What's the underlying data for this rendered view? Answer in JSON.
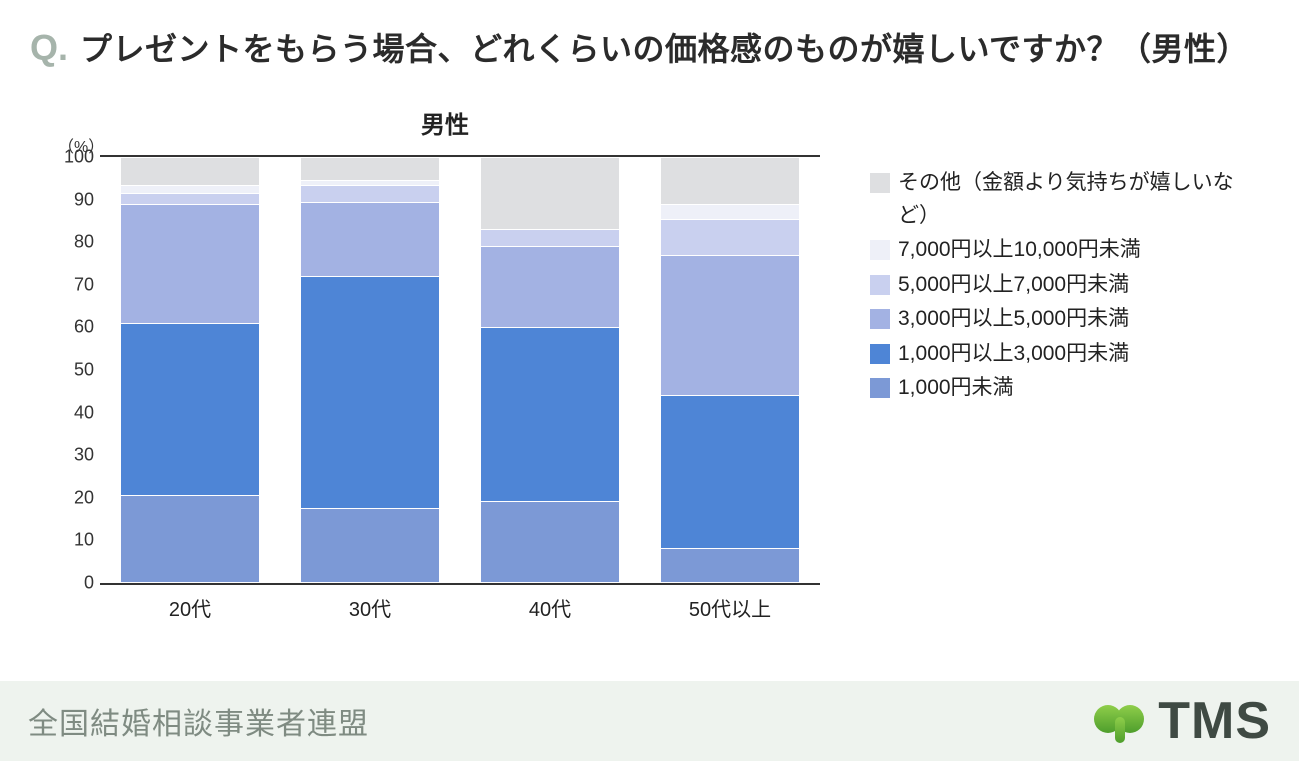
{
  "header": {
    "q": "Q.",
    "title": "プレゼントをもらう場合、どれくらいの価格感のものが嬉しいですか？（男性）"
  },
  "chart": {
    "type": "stacked-bar",
    "title": "男性",
    "unit": "（%）",
    "ylim": [
      0,
      100
    ],
    "ytick_step": 10,
    "yticks": [
      0,
      10,
      20,
      30,
      40,
      50,
      60,
      70,
      80,
      90,
      100
    ],
    "categories": [
      "20代",
      "30代",
      "40代",
      "50代以上"
    ],
    "series": [
      {
        "key": "other",
        "label": "その他（金額より気持ちが嬉しいなど）",
        "color": "#dedfe1"
      },
      {
        "key": "r7_10",
        "label": "7,000円以上10,000円未満",
        "color": "#eef0f8"
      },
      {
        "key": "r5_7",
        "label": "5,000円以上7,000円未満",
        "color": "#c9d0ef"
      },
      {
        "key": "r3_5",
        "label": "3,000円以上5,000円未満",
        "color": "#a3b2e3"
      },
      {
        "key": "r1_3",
        "label": "1,000円以上3,000円未満",
        "color": "#4e85d6"
      },
      {
        "key": "lt1",
        "label": "1,000円未満",
        "color": "#7c99d6"
      }
    ],
    "stack_order_bottom_to_top": [
      "lt1",
      "r1_3",
      "r3_5",
      "r5_7",
      "r7_10",
      "other"
    ],
    "data": {
      "20代": {
        "lt1": 20.5,
        "r1_3": 40.5,
        "r3_5": 28.0,
        "r5_7": 2.5,
        "r7_10": 2.0,
        "other": 6.5
      },
      "30代": {
        "lt1": 17.5,
        "r1_3": 54.5,
        "r3_5": 17.5,
        "r5_7": 4.0,
        "r7_10": 1.0,
        "other": 5.5
      },
      "40代": {
        "lt1": 19.0,
        "r1_3": 41.0,
        "r3_5": 19.0,
        "r5_7": 4.0,
        "r7_10": 0.0,
        "other": 17.0
      },
      "50代以上": {
        "lt1": 8.0,
        "r1_3": 36.0,
        "r3_5": 33.0,
        "r5_7": 8.5,
        "r7_10": 3.5,
        "other": 11.0
      }
    },
    "axis_color": "#333333",
    "background_color": "#ffffff",
    "bar_border_color": "#ffffff",
    "label_fontsize": 20,
    "tick_fontsize": 18,
    "title_fontsize": 24
  },
  "footer": {
    "org": "全国結婚相談事業者連盟",
    "logo_text": "TMS",
    "logo_color": "#6fb23a",
    "footer_bg": "#eef3ee",
    "footer_text_color": "#7f8b82"
  }
}
